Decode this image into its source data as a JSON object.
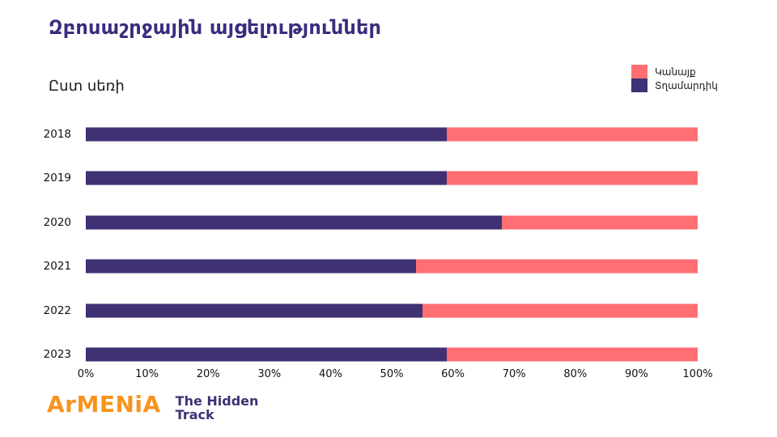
{
  "title": "Զբոսաշրջային այցելություններ",
  "subtitle": "Ըստ սեռի",
  "legend": {
    "women": {
      "label": "Կանայք",
      "color": "#ff6e73"
    },
    "men": {
      "label": "Տղամարդիկ",
      "color": "#3f3173"
    }
  },
  "chart_data": {
    "type": "bar",
    "orientation": "horizontal",
    "stacked": true,
    "title": "Զբոսաշրջային այցելություններ",
    "subtitle": "Ըստ սեռի",
    "unit": "percent",
    "categories": [
      "2018",
      "2019",
      "2020",
      "2021",
      "2022",
      "2023"
    ],
    "series": [
      {
        "key": "men",
        "name": "Տղամարդիկ",
        "color": "#3f3173",
        "values": [
          59,
          59,
          68,
          54,
          55,
          59
        ]
      },
      {
        "key": "women",
        "name": "Կանայք",
        "color": "#ff6e73",
        "values": [
          41,
          41,
          32,
          46,
          45,
          41
        ]
      }
    ],
    "x_ticks": [
      "0%",
      "10%",
      "20%",
      "30%",
      "40%",
      "50%",
      "60%",
      "70%",
      "80%",
      "90%",
      "100%"
    ],
    "xlim": [
      0,
      100
    ],
    "grid": false,
    "legend_position": "top-right"
  },
  "footer": {
    "brand": "ArMENiA",
    "brand_color": "#f7941d",
    "tagline_line1": "The Hidden",
    "tagline_line2": "Track",
    "tagline_color": "#3f3173"
  }
}
